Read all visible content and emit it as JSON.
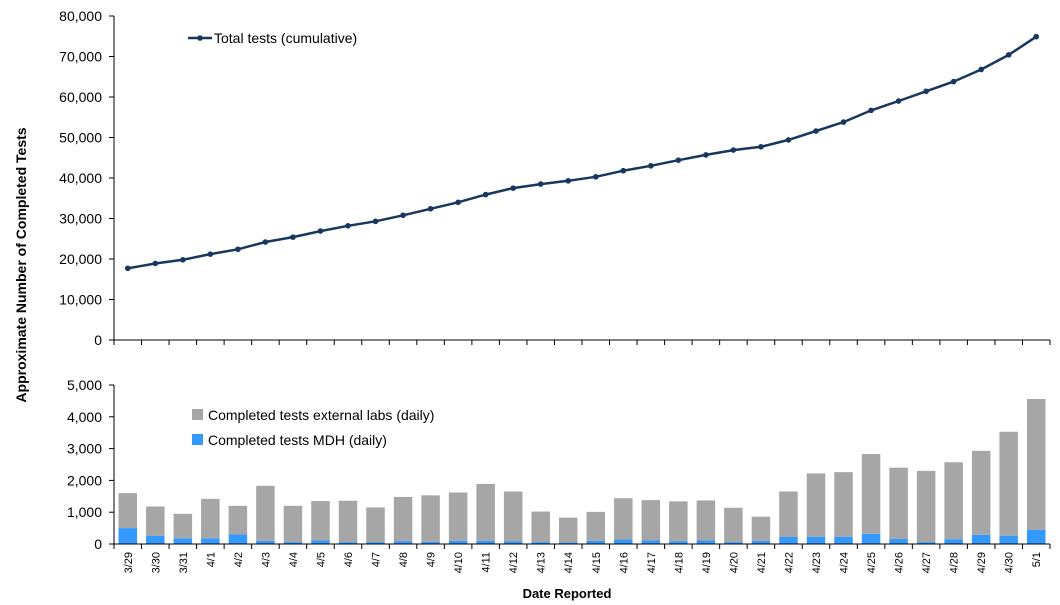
{
  "chart_data": {
    "type": "line+stacked-bar",
    "ylabel": "Approximate Number of Completed Tests",
    "xlabel": "Date Reported",
    "categories": [
      "3/29",
      "3/30",
      "3/31",
      "4/1",
      "4/2",
      "4/3",
      "4/4",
      "4/5",
      "4/6",
      "4/7",
      "4/8",
      "4/9",
      "4/10",
      "4/11",
      "4/12",
      "4/13",
      "4/14",
      "4/15",
      "4/16",
      "4/17",
      "4/18",
      "4/19",
      "4/20",
      "4/21",
      "4/22",
      "4/23",
      "4/24",
      "4/25",
      "4/26",
      "4/27",
      "4/28",
      "4/29",
      "4/30",
      "5/1"
    ],
    "top_panel": {
      "type": "line",
      "ylim": [
        0,
        80000
      ],
      "yticks": [
        0,
        10000,
        20000,
        30000,
        40000,
        50000,
        60000,
        70000,
        80000
      ],
      "ytick_labels": [
        "0",
        "10,000",
        "20,000",
        "30,000",
        "40,000",
        "50,000",
        "60,000",
        "70,000",
        "80,000"
      ],
      "series": [
        {
          "name": "Total tests (cumulative)",
          "color": "#17375E",
          "values": [
            17700,
            18900,
            19800,
            21200,
            22400,
            24200,
            25400,
            26900,
            28200,
            29300,
            30800,
            32400,
            34000,
            35900,
            37500,
            38500,
            39300,
            40300,
            41800,
            43000,
            44400,
            45700,
            46900,
            47700,
            49400,
            51600,
            53800,
            56700,
            59000,
            61400,
            63800,
            66800,
            70400,
            74900
          ]
        }
      ]
    },
    "bottom_panel": {
      "type": "stacked-bar",
      "ylim": [
        0,
        5000
      ],
      "yticks": [
        0,
        1000,
        2000,
        3000,
        4000,
        5000
      ],
      "ytick_labels": [
        "0",
        "1,000",
        "2,000",
        "3,000",
        "4,000",
        "5,000"
      ],
      "series": [
        {
          "name": "Completed tests MDH (daily)",
          "color": "#3399FF",
          "values": [
            500,
            260,
            180,
            180,
            300,
            100,
            60,
            120,
            60,
            60,
            90,
            70,
            100,
            100,
            80,
            60,
            50,
            100,
            140,
            110,
            90,
            110,
            60,
            100,
            220,
            230,
            230,
            320,
            160,
            60,
            150,
            290,
            260,
            450
          ]
        },
        {
          "name": "Completed tests external labs (daily)",
          "color": "#A6A6A6",
          "values": [
            1100,
            920,
            770,
            1240,
            900,
            1730,
            1140,
            1230,
            1300,
            1090,
            1390,
            1460,
            1520,
            1790,
            1570,
            960,
            780,
            910,
            1300,
            1270,
            1250,
            1260,
            1080,
            760,
            1430,
            1990,
            2030,
            2510,
            2240,
            2240,
            2420,
            2640,
            3270,
            4110
          ]
        }
      ]
    }
  }
}
